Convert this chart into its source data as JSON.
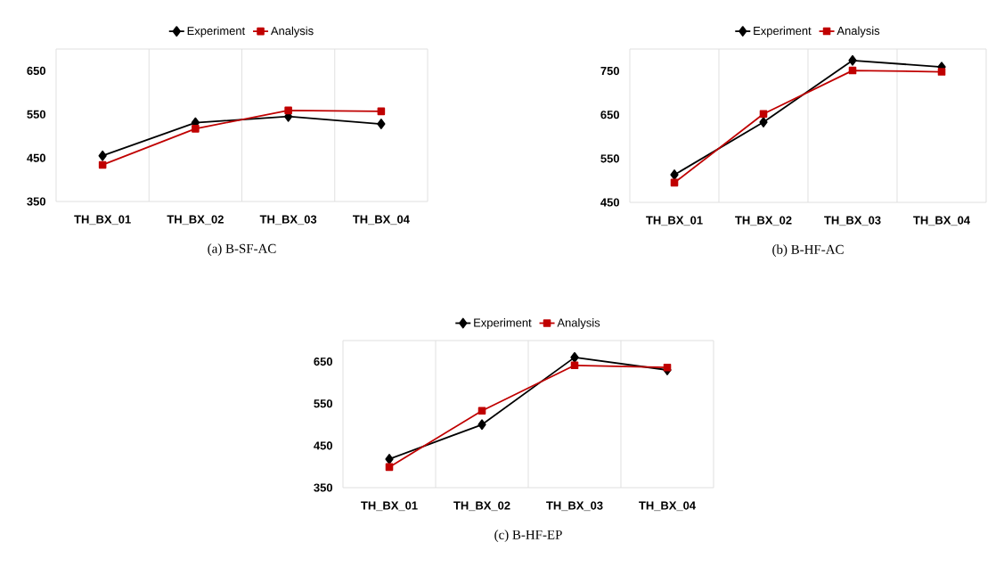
{
  "chart_data": [
    {
      "type": "line",
      "title": "(a) B-SF-AC",
      "categories": [
        "TH_BX_01",
        "TH_BX_02",
        "TH_BX_03",
        "TH_BX_04"
      ],
      "ylim": [
        350,
        700
      ],
      "yticks": [
        350,
        450,
        550,
        650
      ],
      "grid": "x",
      "legend": "top",
      "series": [
        {
          "name": "Experiment",
          "color": "#000000",
          "marker": "diamond",
          "values": [
            455,
            531,
            545,
            528
          ]
        },
        {
          "name": "Analysis",
          "color": "#c00000",
          "marker": "square",
          "values": [
            434,
            517,
            559,
            557
          ]
        }
      ]
    },
    {
      "type": "line",
      "title": "(b) B-HF-AC",
      "categories": [
        "TH_BX_01",
        "TH_BX_02",
        "TH_BX_03",
        "TH_BX_04"
      ],
      "ylim": [
        450,
        800
      ],
      "yticks": [
        450,
        550,
        650,
        750
      ],
      "grid": "x",
      "legend": "top",
      "series": [
        {
          "name": "Experiment",
          "color": "#000000",
          "marker": "diamond",
          "values": [
            513,
            633,
            774,
            759
          ]
        },
        {
          "name": "Analysis",
          "color": "#c00000",
          "marker": "square",
          "values": [
            495,
            652,
            751,
            748
          ]
        }
      ]
    },
    {
      "type": "line",
      "title": "(c) B-HF-EP",
      "categories": [
        "TH_BX_01",
        "TH_BX_02",
        "TH_BX_03",
        "TH_BX_04"
      ],
      "ylim": [
        350,
        700
      ],
      "yticks": [
        350,
        450,
        550,
        650
      ],
      "grid": "x",
      "legend": "top",
      "series": [
        {
          "name": "Experiment",
          "color": "#000000",
          "marker": "diamond",
          "values": [
            418,
            500,
            660,
            630
          ]
        },
        {
          "name": "Analysis",
          "color": "#c00000",
          "marker": "square",
          "values": [
            399,
            533,
            641,
            636
          ]
        }
      ]
    }
  ]
}
